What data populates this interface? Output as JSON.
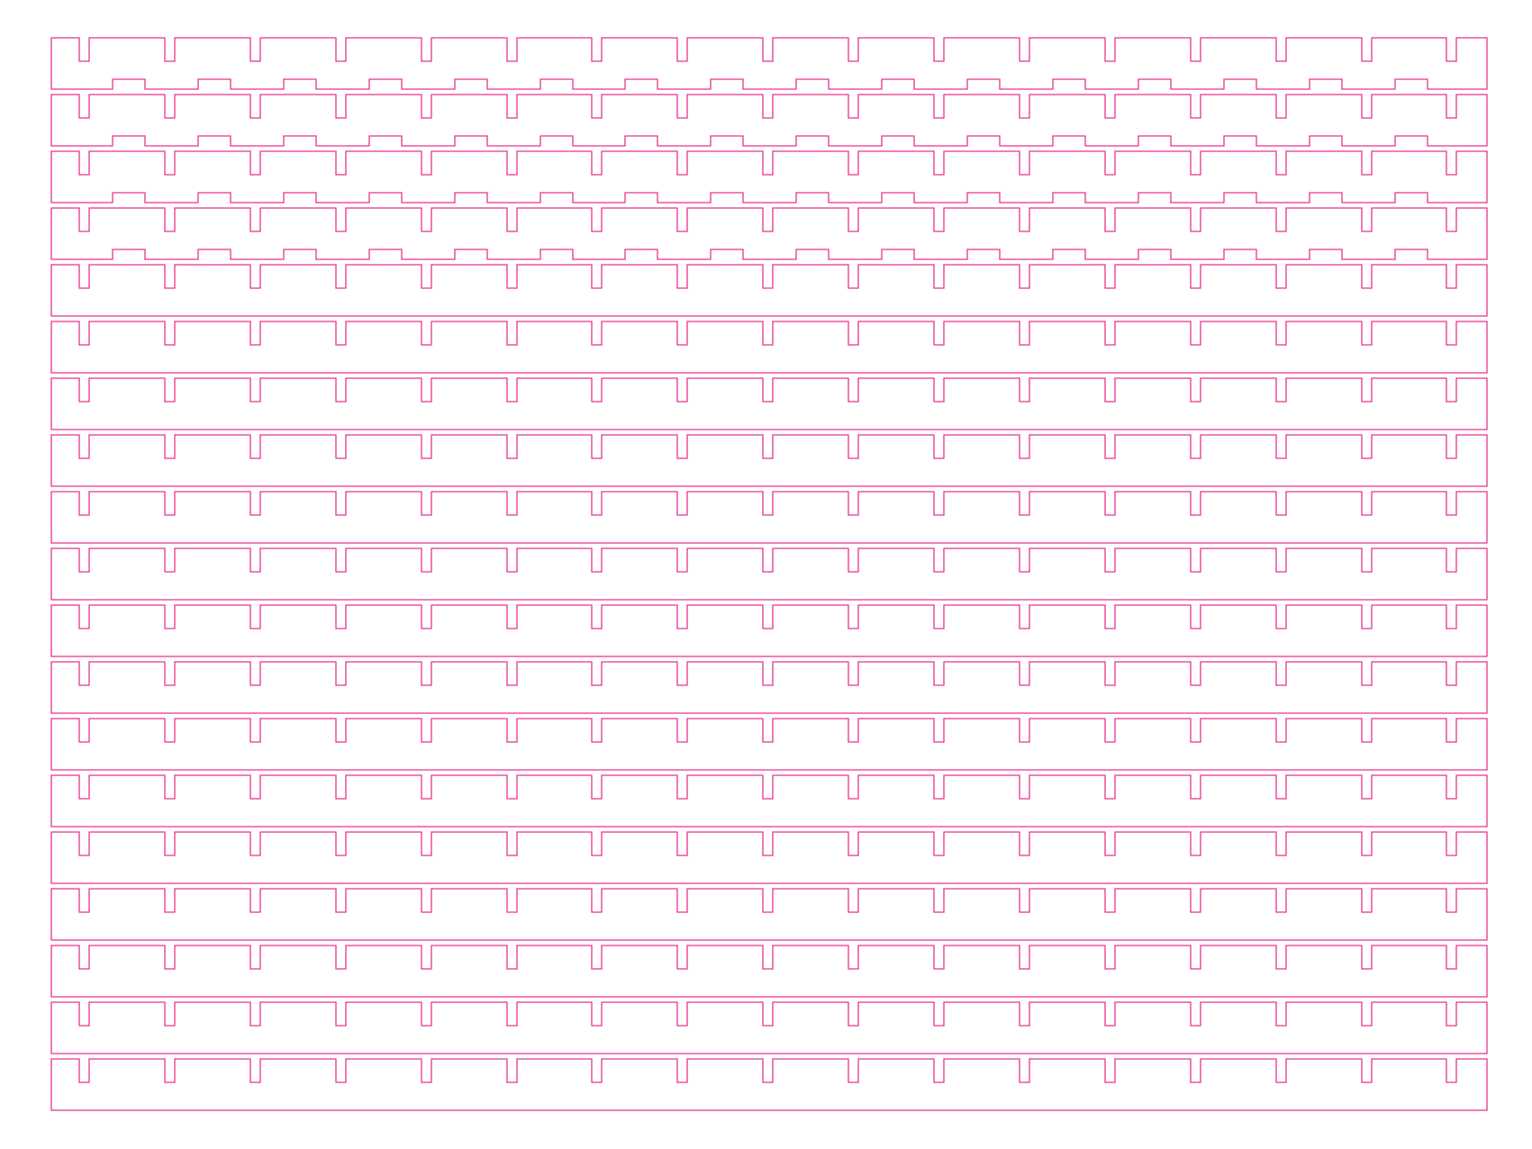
{
  "drawing": {
    "stroke_color": "#e8338f",
    "background_color": "#ffffff",
    "strip_count": 19,
    "notch_count_per_strip": 17,
    "tabbed_strip_count": 4,
    "tab_count_per_strip": 16
  }
}
